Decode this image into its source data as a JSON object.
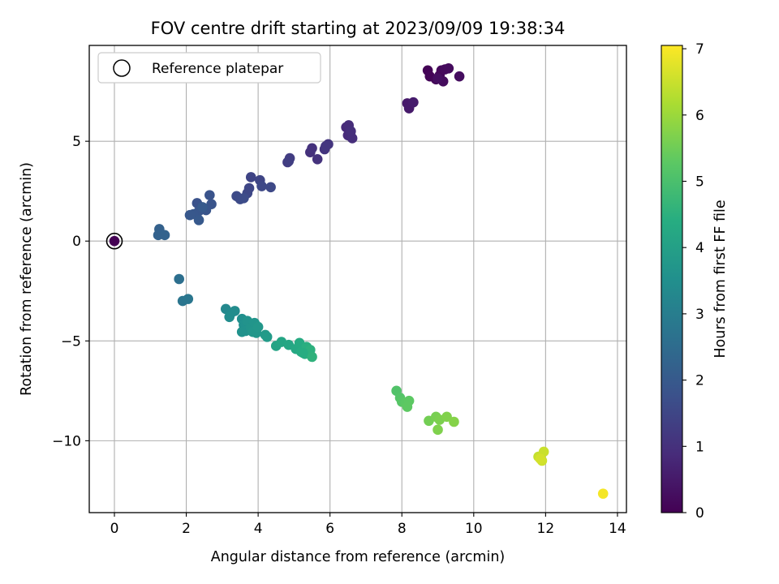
{
  "chart_data": {
    "type": "scatter",
    "title": "FOV centre drift starting at 2023/09/09 19:38:34",
    "xlabel": "Angular distance from reference (arcmin)",
    "ylabel": "Rotation from reference (arcmin)",
    "colorbar_label": "Hours from first FF file",
    "colormap": "viridis",
    "xlim": [
      -0.7,
      14.25
    ],
    "ylim": [
      -13.6,
      9.8
    ],
    "clim": [
      0,
      7.05
    ],
    "xticks": [
      0,
      2,
      4,
      6,
      8,
      10,
      12,
      14
    ],
    "yticks": [
      -10,
      -5,
      0,
      5
    ],
    "cbar_ticks": [
      0,
      1,
      2,
      3,
      4,
      5,
      6,
      7
    ],
    "xtick_labels": [
      "0",
      "2",
      "4",
      "6",
      "8",
      "10",
      "12",
      "14"
    ],
    "ytick_labels": [
      "−10",
      "−5",
      "0",
      "5"
    ],
    "cbar_tick_labels": [
      "0",
      "1",
      "2",
      "3",
      "4",
      "5",
      "6",
      "7"
    ],
    "grid": true,
    "legend": {
      "position": "top-left",
      "entries": [
        {
          "label": "Reference platepar",
          "marker": "open-circle"
        }
      ]
    },
    "reference_point": {
      "x": 0,
      "y": 0,
      "hours": 0
    },
    "points": [
      {
        "x": 8.72,
        "y": 8.55,
        "h": 0.05
      },
      {
        "x": 8.78,
        "y": 8.25,
        "h": 0.08
      },
      {
        "x": 8.95,
        "y": 8.1,
        "h": 0.1
      },
      {
        "x": 9.05,
        "y": 8.3,
        "h": 0.12
      },
      {
        "x": 9.1,
        "y": 8.55,
        "h": 0.15
      },
      {
        "x": 9.2,
        "y": 8.6,
        "h": 0.18
      },
      {
        "x": 9.3,
        "y": 8.65,
        "h": 0.2
      },
      {
        "x": 9.15,
        "y": 8.0,
        "h": 0.22
      },
      {
        "x": 9.6,
        "y": 8.25,
        "h": 0.25
      },
      {
        "x": 9.0,
        "y": 8.15,
        "h": 0.27
      },
      {
        "x": 8.15,
        "y": 6.9,
        "h": 0.5
      },
      {
        "x": 8.2,
        "y": 6.65,
        "h": 0.52
      },
      {
        "x": 8.32,
        "y": 6.95,
        "h": 0.55
      },
      {
        "x": 6.45,
        "y": 5.7,
        "h": 0.85
      },
      {
        "x": 6.5,
        "y": 5.3,
        "h": 0.87
      },
      {
        "x": 6.52,
        "y": 5.8,
        "h": 0.9
      },
      {
        "x": 6.62,
        "y": 5.15,
        "h": 0.92
      },
      {
        "x": 6.58,
        "y": 5.5,
        "h": 0.95
      },
      {
        "x": 5.45,
        "y": 4.45,
        "h": 1.0
      },
      {
        "x": 5.5,
        "y": 4.65,
        "h": 1.02
      },
      {
        "x": 5.65,
        "y": 4.1,
        "h": 1.05
      },
      {
        "x": 5.85,
        "y": 4.6,
        "h": 1.07
      },
      {
        "x": 5.95,
        "y": 4.85,
        "h": 1.1
      },
      {
        "x": 5.88,
        "y": 4.75,
        "h": 1.12
      },
      {
        "x": 4.82,
        "y": 3.95,
        "h": 1.25
      },
      {
        "x": 4.88,
        "y": 4.15,
        "h": 1.28
      },
      {
        "x": 4.85,
        "y": 4.0,
        "h": 1.3
      },
      {
        "x": 3.8,
        "y": 3.2,
        "h": 1.45
      },
      {
        "x": 4.05,
        "y": 3.05,
        "h": 1.47
      },
      {
        "x": 3.75,
        "y": 2.65,
        "h": 1.5
      },
      {
        "x": 3.7,
        "y": 2.4,
        "h": 1.52
      },
      {
        "x": 4.1,
        "y": 2.75,
        "h": 1.55
      },
      {
        "x": 4.35,
        "y": 2.7,
        "h": 1.57
      },
      {
        "x": 3.4,
        "y": 2.25,
        "h": 1.6
      },
      {
        "x": 3.5,
        "y": 2.1,
        "h": 1.62
      },
      {
        "x": 3.6,
        "y": 2.15,
        "h": 1.65
      },
      {
        "x": 2.3,
        "y": 1.9,
        "h": 1.8
      },
      {
        "x": 2.65,
        "y": 2.3,
        "h": 1.82
      },
      {
        "x": 2.7,
        "y": 1.85,
        "h": 1.85
      },
      {
        "x": 2.55,
        "y": 1.55,
        "h": 1.87
      },
      {
        "x": 2.35,
        "y": 1.5,
        "h": 1.9
      },
      {
        "x": 2.2,
        "y": 1.35,
        "h": 1.92
      },
      {
        "x": 2.1,
        "y": 1.3,
        "h": 1.95
      },
      {
        "x": 2.35,
        "y": 1.05,
        "h": 1.97
      },
      {
        "x": 2.45,
        "y": 1.7,
        "h": 2.0
      },
      {
        "x": 1.25,
        "y": 0.6,
        "h": 2.2
      },
      {
        "x": 1.22,
        "y": 0.3,
        "h": 2.22
      },
      {
        "x": 1.4,
        "y": 0.3,
        "h": 2.25
      },
      {
        "x": 1.8,
        "y": -1.9,
        "h": 2.6
      },
      {
        "x": 1.9,
        "y": -3.0,
        "h": 2.75
      },
      {
        "x": 2.05,
        "y": -2.9,
        "h": 2.8
      },
      {
        "x": 3.1,
        "y": -3.4,
        "h": 3.3
      },
      {
        "x": 3.25,
        "y": -3.6,
        "h": 3.35
      },
      {
        "x": 3.35,
        "y": -3.5,
        "h": 3.4
      },
      {
        "x": 3.2,
        "y": -3.8,
        "h": 3.45
      },
      {
        "x": 3.55,
        "y": -3.9,
        "h": 3.5
      },
      {
        "x": 3.6,
        "y": -4.2,
        "h": 3.55
      },
      {
        "x": 3.65,
        "y": -4.5,
        "h": 3.6
      },
      {
        "x": 3.7,
        "y": -4.0,
        "h": 3.62
      },
      {
        "x": 3.8,
        "y": -4.35,
        "h": 3.65
      },
      {
        "x": 3.9,
        "y": -4.1,
        "h": 3.68
      },
      {
        "x": 3.85,
        "y": -4.55,
        "h": 3.7
      },
      {
        "x": 3.95,
        "y": -4.6,
        "h": 3.72
      },
      {
        "x": 4.0,
        "y": -4.3,
        "h": 3.75
      },
      {
        "x": 4.2,
        "y": -4.7,
        "h": 3.8
      },
      {
        "x": 4.25,
        "y": -4.8,
        "h": 3.85
      },
      {
        "x": 3.55,
        "y": -4.55,
        "h": 3.58
      },
      {
        "x": 4.5,
        "y": -5.25,
        "h": 4.1
      },
      {
        "x": 4.65,
        "y": -5.05,
        "h": 4.15
      },
      {
        "x": 4.85,
        "y": -5.2,
        "h": 4.2
      },
      {
        "x": 5.05,
        "y": -5.4,
        "h": 4.25
      },
      {
        "x": 5.15,
        "y": -5.1,
        "h": 4.3
      },
      {
        "x": 5.2,
        "y": -5.55,
        "h": 4.35
      },
      {
        "x": 5.3,
        "y": -5.65,
        "h": 4.4
      },
      {
        "x": 5.35,
        "y": -5.3,
        "h": 4.45
      },
      {
        "x": 5.45,
        "y": -5.45,
        "h": 4.5
      },
      {
        "x": 5.5,
        "y": -5.8,
        "h": 4.55
      },
      {
        "x": 5.25,
        "y": -5.6,
        "h": 4.38
      },
      {
        "x": 7.85,
        "y": -7.5,
        "h": 5.1
      },
      {
        "x": 7.95,
        "y": -7.85,
        "h": 5.15
      },
      {
        "x": 8.0,
        "y": -8.05,
        "h": 5.2
      },
      {
        "x": 8.1,
        "y": -8.1,
        "h": 5.25
      },
      {
        "x": 8.2,
        "y": -8.0,
        "h": 5.28
      },
      {
        "x": 8.15,
        "y": -8.3,
        "h": 5.3
      },
      {
        "x": 8.75,
        "y": -9.0,
        "h": 5.55
      },
      {
        "x": 8.95,
        "y": -8.8,
        "h": 5.6
      },
      {
        "x": 9.05,
        "y": -8.95,
        "h": 5.65
      },
      {
        "x": 9.25,
        "y": -8.8,
        "h": 5.7
      },
      {
        "x": 9.45,
        "y": -9.05,
        "h": 5.75
      },
      {
        "x": 9.0,
        "y": -9.45,
        "h": 5.68
      },
      {
        "x": 11.8,
        "y": -10.8,
        "h": 6.45
      },
      {
        "x": 11.95,
        "y": -10.55,
        "h": 6.5
      },
      {
        "x": 11.9,
        "y": -11.0,
        "h": 6.55
      },
      {
        "x": 11.85,
        "y": -10.9,
        "h": 6.6
      },
      {
        "x": 13.6,
        "y": -12.65,
        "h": 6.95
      }
    ]
  }
}
